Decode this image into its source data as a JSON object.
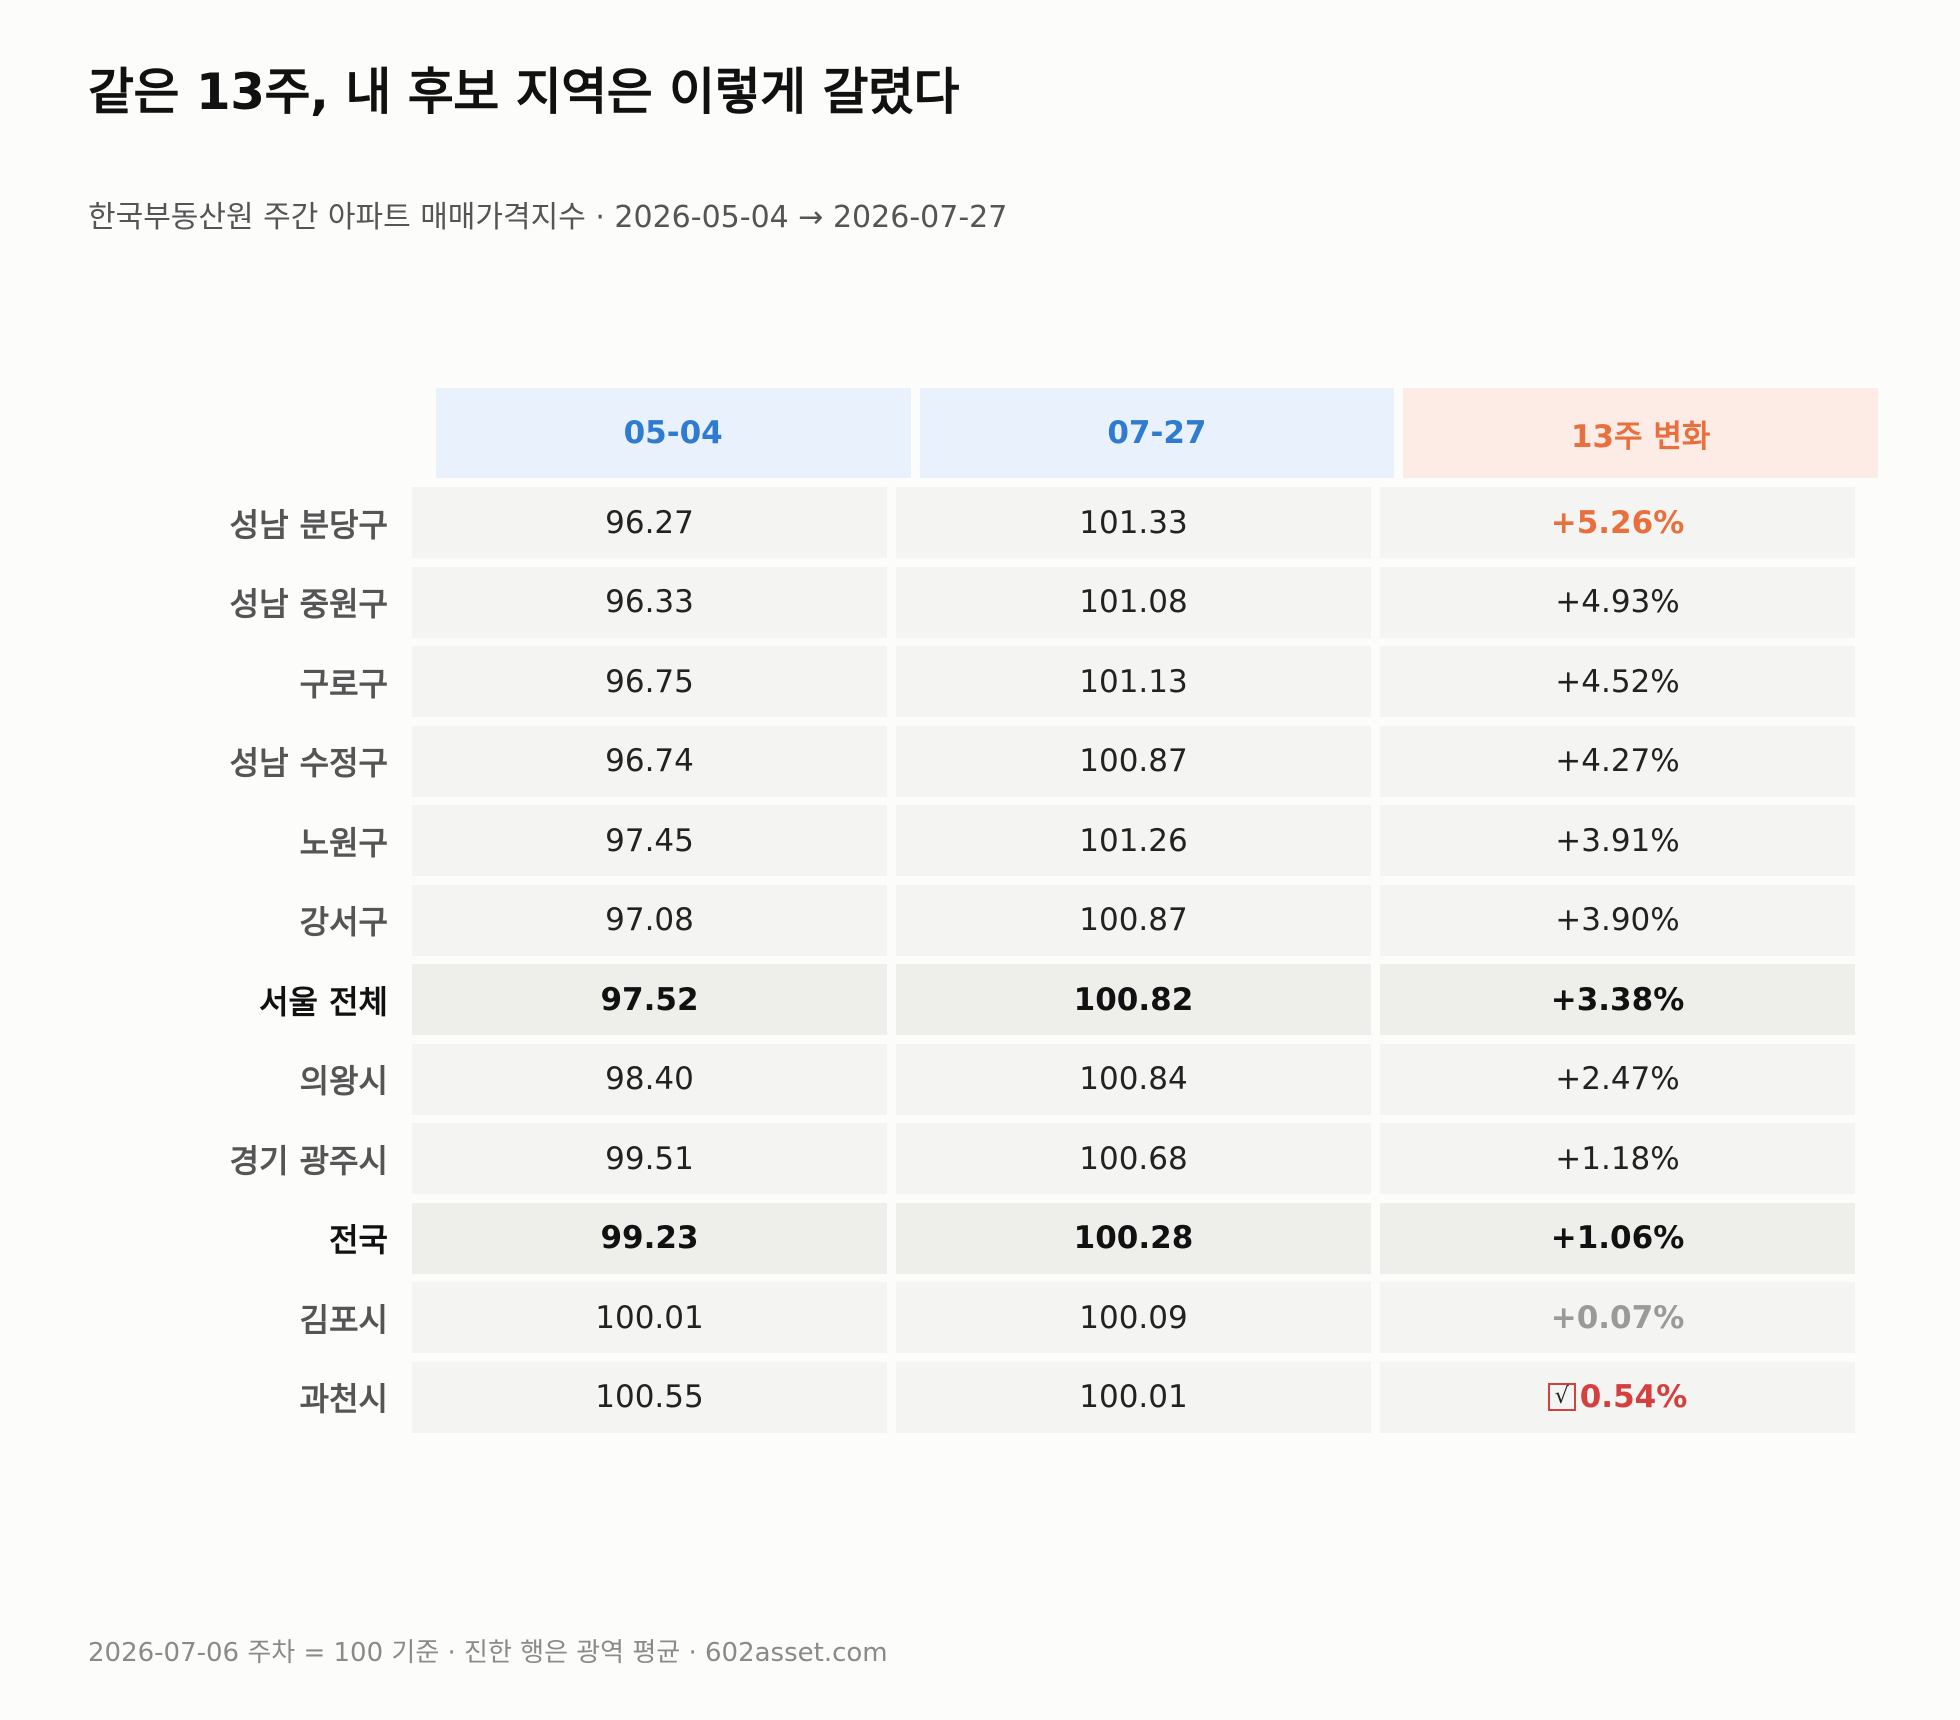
{
  "title": "같은 13주, 내 후보 지역은 이렇게 갈렸다",
  "subtitle": "한국부동산원 주간 아파트 매매가격지수 · 2026-05-04 → 2026-07-27",
  "footer": "2026-07-06 주차 = 100 기준 · 진한 행은 광역 평균 · 602asset.com",
  "colors": {
    "date_header_bg": "#e9f1fc",
    "date_header_text": "#2f7bd1",
    "change_header_bg": "#fdece5",
    "change_header_text": "#e8703e",
    "top_change": "#e8703e",
    "negative_change": "#d43f3f",
    "flat_change": "#9a9a9a"
  },
  "chart_data": {
    "type": "table",
    "title": "같은 13주, 내 후보 지역은 이렇게 갈렸다",
    "columns": [
      "05-04",
      "07-27",
      "13주 변화"
    ],
    "rows": [
      {
        "region": "성남 분당구",
        "start": "96.27",
        "end": "101.33",
        "change": "+5.26%",
        "style": "top",
        "aggregate": false
      },
      {
        "region": "성남 중원구",
        "start": "96.33",
        "end": "101.08",
        "change": "+4.93%",
        "style": "normal",
        "aggregate": false
      },
      {
        "region": "구로구",
        "start": "96.75",
        "end": "101.13",
        "change": "+4.52%",
        "style": "normal",
        "aggregate": false
      },
      {
        "region": "성남 수정구",
        "start": "96.74",
        "end": "100.87",
        "change": "+4.27%",
        "style": "normal",
        "aggregate": false
      },
      {
        "region": "노원구",
        "start": "97.45",
        "end": "101.26",
        "change": "+3.91%",
        "style": "normal",
        "aggregate": false
      },
      {
        "region": "강서구",
        "start": "97.08",
        "end": "100.87",
        "change": "+3.90%",
        "style": "normal",
        "aggregate": false
      },
      {
        "region": "서울 전체",
        "start": "97.52",
        "end": "100.82",
        "change": "+3.38%",
        "style": "normal",
        "aggregate": true
      },
      {
        "region": "의왕시",
        "start": "98.40",
        "end": "100.84",
        "change": "+2.47%",
        "style": "normal",
        "aggregate": false
      },
      {
        "region": "경기 광주시",
        "start": "99.51",
        "end": "100.68",
        "change": "+1.18%",
        "style": "normal",
        "aggregate": false
      },
      {
        "region": "전국",
        "start": "99.23",
        "end": "100.28",
        "change": "+1.06%",
        "style": "normal",
        "aggregate": true
      },
      {
        "region": "김포시",
        "start": "100.01",
        "end": "100.09",
        "change": "+0.07%",
        "style": "flat",
        "aggregate": false
      },
      {
        "region": "과천시",
        "start": "100.55",
        "end": "100.01",
        "change": "0.54%",
        "style": "negative",
        "aggregate": false,
        "icon": "negative-sign-glyph-icon"
      }
    ]
  }
}
